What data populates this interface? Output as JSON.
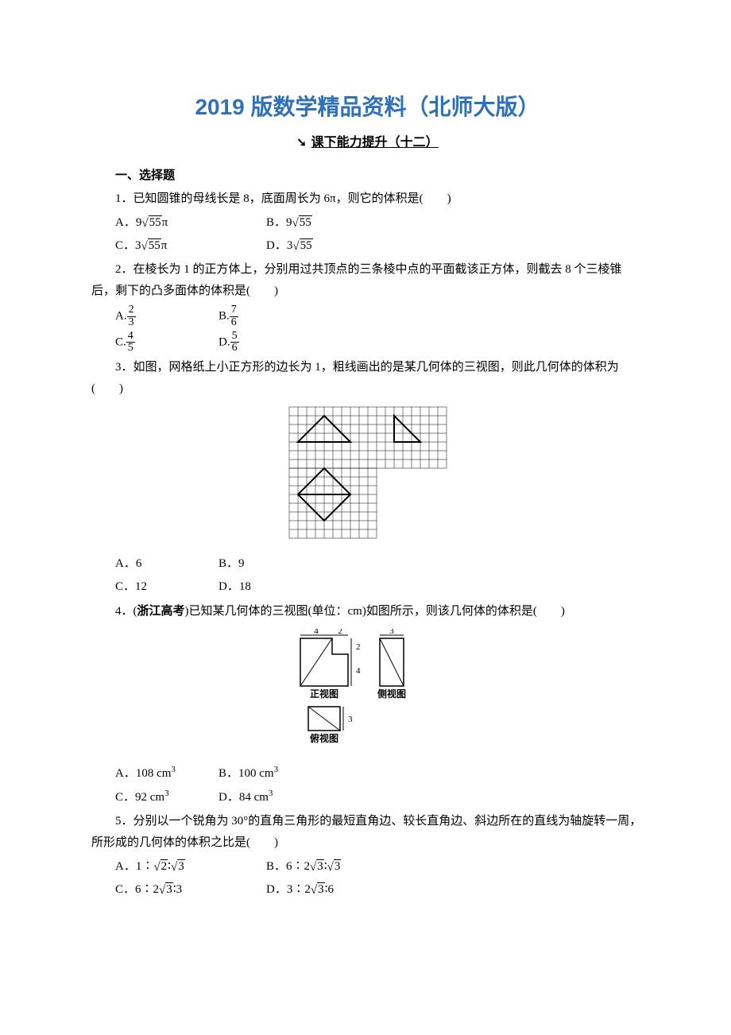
{
  "title": "2019 版数学精品资料（北师大版）",
  "arrow_glyph": "➘",
  "subtitle": "课下能力提升（十二）",
  "section1": "一、选择题",
  "q1": {
    "text": "1．已知圆锥的母线长是 8，底面周长为 6π，则它的体积是(　　)",
    "a_pre": "A．9",
    "a_rad": "55",
    "a_post": "π",
    "b_pre": "B．9",
    "b_rad": "55",
    "c_pre": "C．3",
    "c_rad": "55",
    "c_post": "π",
    "d_pre": "D．3",
    "d_rad": "55"
  },
  "q2": {
    "text": "2．在棱长为 1 的正方体上，分别用过共顶点的三条棱中点的平面截该正方体，则截去 8 个三棱锥后，剩下的凸多面体的体积是(　　)",
    "a_label": "A.",
    "a_num": "2",
    "a_den": "3",
    "b_label": "B.",
    "b_num": "7",
    "b_den": "6",
    "c_label": "C.",
    "c_num": "4",
    "c_den": "5",
    "d_label": "D.",
    "d_num": "5",
    "d_den": "6"
  },
  "q3": {
    "text": "3．如图，网格纸上小正方形的边长为 1，粗线画出的是某几何体的三视图，则此几何体的体积为(　　)",
    "a": "A．6",
    "b": "B．9",
    "c": "C．12",
    "d": "D．18",
    "grid": {
      "cell": 11,
      "cols": 18,
      "rows1": 7,
      "rows2": 8,
      "split_col": 10
    }
  },
  "q4": {
    "text_pre": "4．(",
    "tag": "浙江高考",
    "text_post": ")已知某几何体的三视图(单位：cm)如图所示，则该几何体的体积是(　　)",
    "a": "A．108 cm",
    "b": "B．100 cm",
    "c": "C．92 cm",
    "d": "D．84 cm",
    "labels": {
      "front": "正视图",
      "side": "侧视图",
      "top": "俯视图"
    },
    "dims": {
      "w1": "4",
      "w2": "2",
      "w3": "3",
      "h1": "4",
      "h2": "2",
      "h3": "3"
    }
  },
  "q5": {
    "text": "5．分别以一个锐角为 30°的直角三角形的最短直角边、较长直角边、斜边所在的直线为轴旋转一周，所形成的几何体的体积之比是(　　)",
    "a_pre": "A．1∶",
    "a_r1": "2",
    "a_mid": "∶",
    "a_r2": "3",
    "b_pre": "B．6∶2",
    "b_r1": "3",
    "b_mid": "∶",
    "b_r2": "3",
    "c_pre": "C．6∶2",
    "c_r1": "3",
    "c_post": "∶3",
    "d_pre": "D．3∶2",
    "d_r1": "3",
    "d_post": "∶6"
  }
}
